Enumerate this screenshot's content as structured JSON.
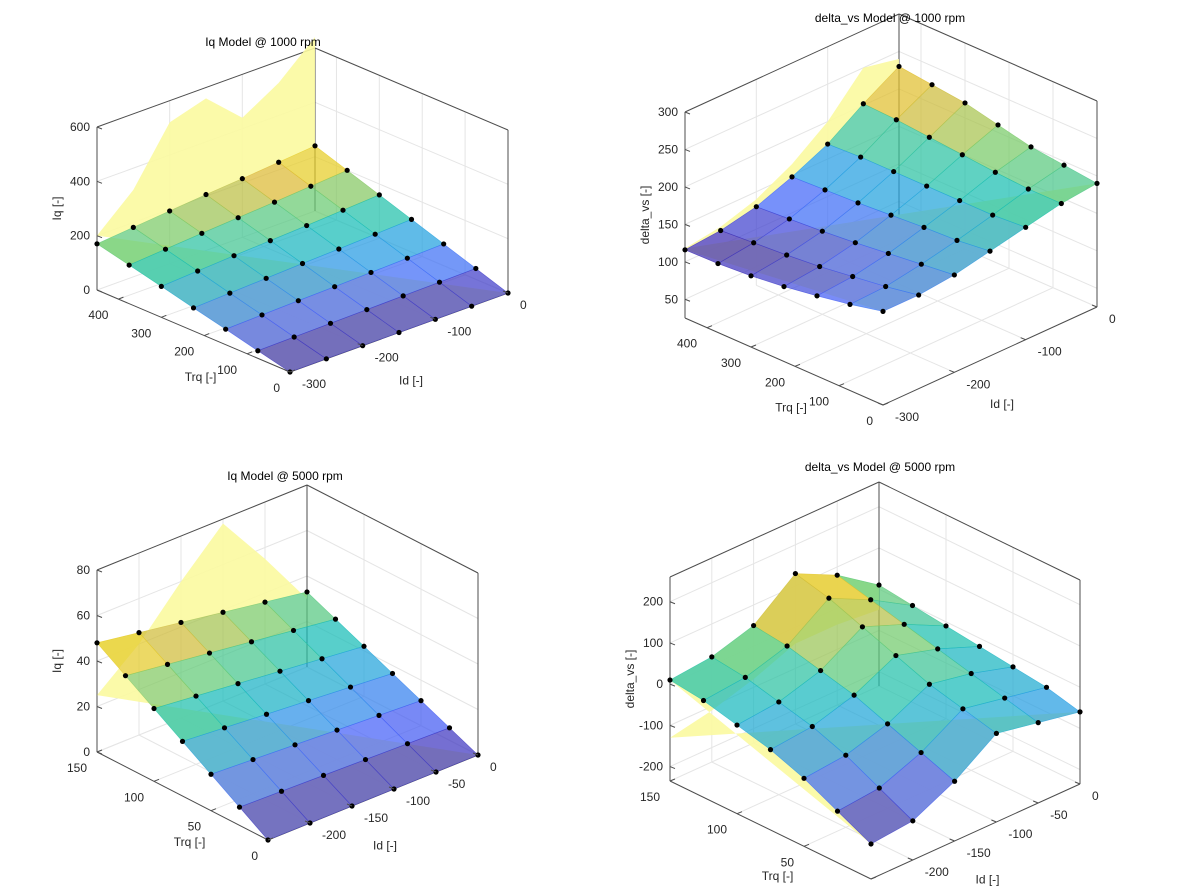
{
  "chart_data": [
    {
      "type": "surface3d",
      "title": "Iq Model @ 1000 rpm",
      "xlabel": "Trq [-]",
      "ylabel": "Id [-]",
      "zlabel": "Iq [-]",
      "xlim": [
        0,
        450
      ],
      "ylim": [
        -300,
        0
      ],
      "zlim": [
        0,
        600
      ],
      "xticks": [
        0,
        100,
        200,
        300,
        400
      ],
      "yticks": [
        -300,
        -200,
        -100,
        0
      ],
      "zticks": [
        0,
        200,
        400,
        600
      ],
      "grid": true,
      "surface": {
        "trq": [
          0,
          75,
          150,
          225,
          300,
          375,
          450
        ],
        "id": [
          -300,
          -250,
          -200,
          -150,
          -100,
          -50,
          0
        ],
        "z": [
          [
            0,
            0,
            0,
            0,
            0,
            0,
            0
          ],
          [
            28,
            30,
            32,
            34,
            36,
            38,
            40
          ],
          [
            57,
            61,
            65,
            68,
            72,
            76,
            80
          ],
          [
            85,
            91,
            97,
            103,
            108,
            114,
            120
          ],
          [
            114,
            122,
            130,
            137,
            144,
            152,
            160
          ],
          [
            142,
            152,
            162,
            171,
            180,
            190,
            200
          ],
          [
            170,
            182,
            194,
            206,
            216,
            228,
            240
          ]
        ]
      },
      "envelope_at_max_trq": {
        "id": [
          -300,
          -250,
          -200,
          -150,
          -100,
          -50,
          0
        ],
        "z": [
          200,
          320,
          520,
          560,
          440,
          520,
          640
        ]
      }
    },
    {
      "type": "surface3d",
      "title": "delta_vs Model @ 1000 rpm",
      "xlabel": "Trq [-]",
      "ylabel": "Id [-]",
      "zlabel": "delta_vs [-]",
      "xlim": [
        0,
        450
      ],
      "ylim": [
        -300,
        0
      ],
      "zlim": [
        25,
        300
      ],
      "xticks": [
        0,
        100,
        200,
        300,
        400
      ],
      "yticks": [
        -300,
        -200,
        -100,
        0
      ],
      "zticks": [
        50,
        100,
        150,
        200,
        250,
        300
      ],
      "grid": true,
      "surface": {
        "trq": [
          0,
          75,
          150,
          225,
          300,
          375,
          450
        ],
        "id": [
          -300,
          -250,
          -200,
          -150,
          -100,
          -50,
          0
        ],
        "z": [
          [
            150,
            150,
            155,
            165,
            175,
            185,
            190
          ],
          [
            140,
            142,
            150,
            160,
            172,
            185,
            195
          ],
          [
            132,
            136,
            145,
            158,
            172,
            188,
            200
          ],
          [
            125,
            130,
            140,
            155,
            172,
            192,
            210
          ],
          [
            120,
            126,
            136,
            152,
            172,
            196,
            220
          ],
          [
            117,
            123,
            133,
            150,
            172,
            200,
            225
          ],
          [
            116,
            120,
            130,
            148,
            170,
            202,
            230
          ]
        ]
      },
      "envelope_at_max_trq": {
        "id": [
          -300,
          -250,
          -200,
          -150,
          -100,
          -50,
          0
        ],
        "z": [
          118,
          125,
          140,
          165,
          200,
          250,
          240
        ]
      }
    },
    {
      "type": "surface3d",
      "title": "Iq Model @ 5000 rpm",
      "xlabel": "Trq [-]",
      "ylabel": "Id [-]",
      "zlabel": "Iq [-]",
      "xlim": [
        0,
        150
      ],
      "ylim": [
        -250,
        0
      ],
      "zlim": [
        0,
        80
      ],
      "xticks": [
        0,
        50,
        100,
        150
      ],
      "yticks": [
        -200,
        -150,
        -100,
        -50,
        0
      ],
      "zticks": [
        0,
        20,
        40,
        60,
        80
      ],
      "grid": true,
      "surface": {
        "trq": [
          0,
          25,
          50,
          75,
          100,
          125,
          150
        ],
        "id": [
          -250,
          -200,
          -150,
          -100,
          -50,
          0
        ],
        "z": [
          [
            0,
            0,
            0,
            0,
            0,
            0
          ],
          [
            8,
            7.5,
            7,
            6.5,
            6,
            5.5
          ],
          [
            16,
            15,
            14,
            13,
            12,
            11
          ],
          [
            24,
            22.5,
            21,
            19.5,
            18,
            16.5
          ],
          [
            32,
            30,
            28,
            26,
            24,
            22
          ],
          [
            40,
            37.5,
            35,
            32.5,
            30,
            27.5
          ],
          [
            48,
            45,
            42,
            39,
            36,
            33
          ]
        ]
      },
      "envelope_at_max_trq": {
        "id": [
          -250,
          -200,
          -150,
          -100,
          -50,
          0
        ],
        "z": [
          25,
          40,
          60,
          78,
          55,
          30
        ]
      }
    },
    {
      "type": "surface3d",
      "title": "delta_vs Model @ 5000 rpm",
      "xlabel": "Trq [-]",
      "ylabel": "Id [-]",
      "zlabel": "delta_vs [-]",
      "xlim": [
        0,
        150
      ],
      "ylim": [
        -250,
        0
      ],
      "zlim": [
        -235,
        260
      ],
      "xticks": [
        0,
        50,
        100,
        150
      ],
      "yticks": [
        -200,
        -150,
        -100,
        -50,
        0
      ],
      "zticks": [
        -200,
        -100,
        0,
        100,
        200
      ],
      "grid": true,
      "surface": {
        "trq": [
          0,
          25,
          50,
          75,
          100,
          125,
          150
        ],
        "id": [
          -250,
          -200,
          -150,
          -100,
          -50,
          0
        ],
        "z": [
          [
            -150,
            -140,
            -90,
            -20,
            -40,
            -60
          ],
          [
            -110,
            -100,
            -60,
            0,
            -20,
            -40
          ],
          [
            -70,
            -60,
            -30,
            20,
            0,
            -30
          ],
          [
            -40,
            -30,
            0,
            50,
            20,
            -20
          ],
          [
            -20,
            -10,
            20,
            80,
            40,
            -10
          ],
          [
            0,
            10,
            40,
            110,
            60,
            0
          ],
          [
            10,
            20,
            50,
            130,
            80,
            10
          ]
        ]
      },
      "envelope_at_max_trq": {
        "id": [
          -250,
          -200,
          -150,
          -100,
          -50,
          0
        ],
        "z": [
          -130,
          -110,
          -80,
          -40,
          -40,
          -50
        ]
      }
    }
  ],
  "colors": {
    "colormap": "parula",
    "envelope": "#fbf9a0",
    "markers": "#000000",
    "axes": "#4d4d4d",
    "grid": "#e5e5e5"
  }
}
